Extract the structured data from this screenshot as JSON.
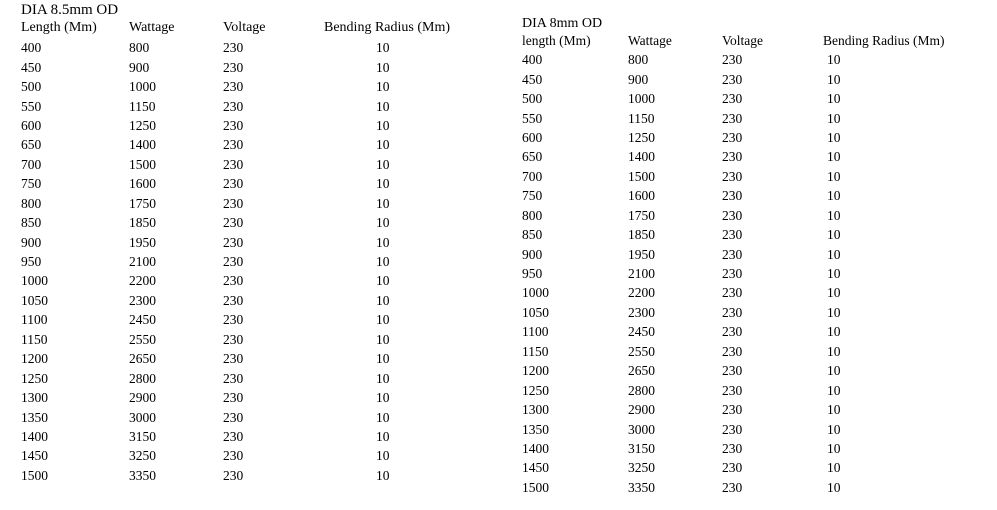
{
  "left": {
    "title": "DIA 8.5mm OD",
    "headers": [
      "Length (Mm)",
      "Wattage",
      "Voltage",
      "Bending Radius (Mm)"
    ],
    "rows": [
      [
        "400",
        "800",
        "230",
        "10"
      ],
      [
        "450",
        "900",
        "230",
        "10"
      ],
      [
        "500",
        "1000",
        "230",
        "10"
      ],
      [
        "550",
        "1150",
        "230",
        "10"
      ],
      [
        "600",
        "1250",
        "230",
        "10"
      ],
      [
        "650",
        "1400",
        "230",
        "10"
      ],
      [
        "700",
        "1500",
        "230",
        "10"
      ],
      [
        "750",
        "1600",
        "230",
        "10"
      ],
      [
        "800",
        "1750",
        "230",
        "10"
      ],
      [
        "850",
        "1850",
        "230",
        "10"
      ],
      [
        "900",
        "1950",
        "230",
        "10"
      ],
      [
        "950",
        "2100",
        "230",
        "10"
      ],
      [
        "1000",
        "2200",
        "230",
        "10"
      ],
      [
        "1050",
        "2300",
        "230",
        "10"
      ],
      [
        "1100",
        "2450",
        "230",
        "10"
      ],
      [
        "1150",
        "2550",
        "230",
        "10"
      ],
      [
        "1200",
        "2650",
        "230",
        "10"
      ],
      [
        "1250",
        "2800",
        "230",
        "10"
      ],
      [
        "1300",
        "2900",
        "230",
        "10"
      ],
      [
        "1350",
        "3000",
        "230",
        "10"
      ],
      [
        "1400",
        "3150",
        "230",
        "10"
      ],
      [
        "1450",
        "3250",
        "230",
        "10"
      ],
      [
        "1500",
        "3350",
        "230",
        "10"
      ]
    ]
  },
  "right": {
    "title": "DIA 8mm OD",
    "headers": [
      "length (Mm)",
      "Wattage",
      "Voltage",
      "Bending Radius (Mm)"
    ],
    "rows": [
      [
        "400",
        "800",
        "230",
        "10"
      ],
      [
        "450",
        "900",
        "230",
        "10"
      ],
      [
        "500",
        "1000",
        "230",
        "10"
      ],
      [
        "550",
        "1150",
        "230",
        "10"
      ],
      [
        "600",
        "1250",
        "230",
        "10"
      ],
      [
        "650",
        "1400",
        "230",
        "10"
      ],
      [
        "700",
        "1500",
        "230",
        "10"
      ],
      [
        "750",
        "1600",
        "230",
        "10"
      ],
      [
        "800",
        "1750",
        "230",
        "10"
      ],
      [
        "850",
        "1850",
        "230",
        "10"
      ],
      [
        "900",
        "1950",
        "230",
        "10"
      ],
      [
        "950",
        "2100",
        "230",
        "10"
      ],
      [
        "1000",
        "2200",
        "230",
        "10"
      ],
      [
        "1050",
        "2300",
        "230",
        "10"
      ],
      [
        "1100",
        "2450",
        "230",
        "10"
      ],
      [
        "1150",
        "2550",
        "230",
        "10"
      ],
      [
        "1200",
        "2650",
        "230",
        "10"
      ],
      [
        "1250",
        "2800",
        "230",
        "10"
      ],
      [
        "1300",
        "2900",
        "230",
        "10"
      ],
      [
        "1350",
        "3000",
        "230",
        "10"
      ],
      [
        "1400",
        "3150",
        "230",
        "10"
      ],
      [
        "1450",
        "3250",
        "230",
        "10"
      ],
      [
        "1500",
        "3350",
        "230",
        "10"
      ]
    ]
  }
}
